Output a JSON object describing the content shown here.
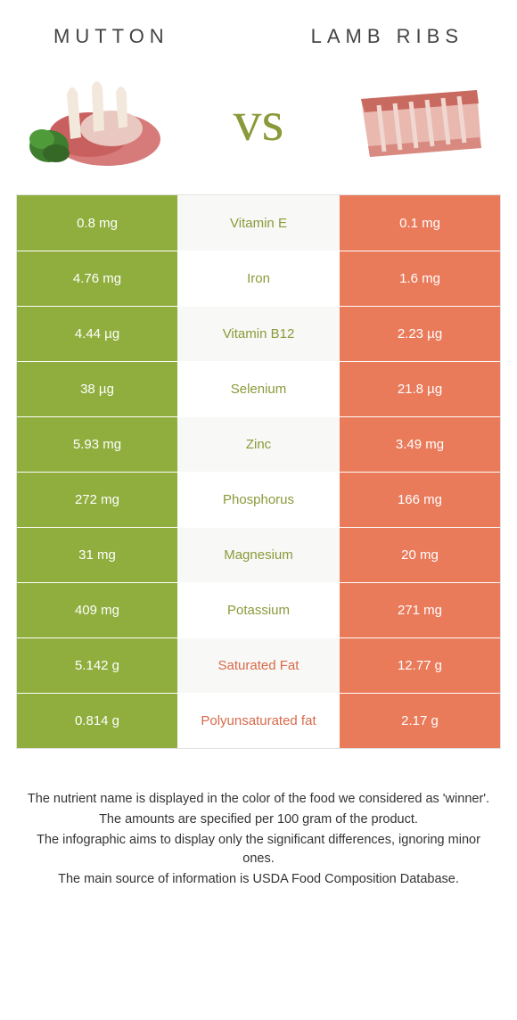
{
  "header": {
    "left": "MUTTON",
    "right": "LAMB RIBS"
  },
  "vs_text": "vs",
  "colors": {
    "left_bg": "#8fae3d",
    "right_bg": "#e97a5a",
    "nutrient_left_win": "#8a9a3a",
    "nutrient_right_win": "#d86a4a",
    "mid_bg_odd": "#f8f8f6",
    "mid_bg_even": "#ffffff",
    "border": "#e2e2e2"
  },
  "rows": [
    {
      "left": "0.8 mg",
      "nutrient": "Vitamin E",
      "right": "0.1 mg",
      "winner": "left"
    },
    {
      "left": "4.76 mg",
      "nutrient": "Iron",
      "right": "1.6 mg",
      "winner": "left"
    },
    {
      "left": "4.44 µg",
      "nutrient": "Vitamin B12",
      "right": "2.23 µg",
      "winner": "left"
    },
    {
      "left": "38 µg",
      "nutrient": "Selenium",
      "right": "21.8 µg",
      "winner": "left"
    },
    {
      "left": "5.93 mg",
      "nutrient": "Zinc",
      "right": "3.49 mg",
      "winner": "left"
    },
    {
      "left": "272 mg",
      "nutrient": "Phosphorus",
      "right": "166 mg",
      "winner": "left"
    },
    {
      "left": "31 mg",
      "nutrient": "Magnesium",
      "right": "20 mg",
      "winner": "left"
    },
    {
      "left": "409 mg",
      "nutrient": "Potassium",
      "right": "271 mg",
      "winner": "left"
    },
    {
      "left": "5.142 g",
      "nutrient": "Saturated Fat",
      "right": "12.77 g",
      "winner": "right"
    },
    {
      "left": "0.814 g",
      "nutrient": "Polyunsaturated fat",
      "right": "2.17 g",
      "winner": "right"
    }
  ],
  "footnotes": [
    "The nutrient name is displayed in the color of the food we considered as 'winner'.",
    "The amounts are specified per 100 gram of the product.",
    "The infographic aims to display only the significant differences, ignoring minor ones.",
    "The main source of information is USDA Food Composition Database."
  ]
}
